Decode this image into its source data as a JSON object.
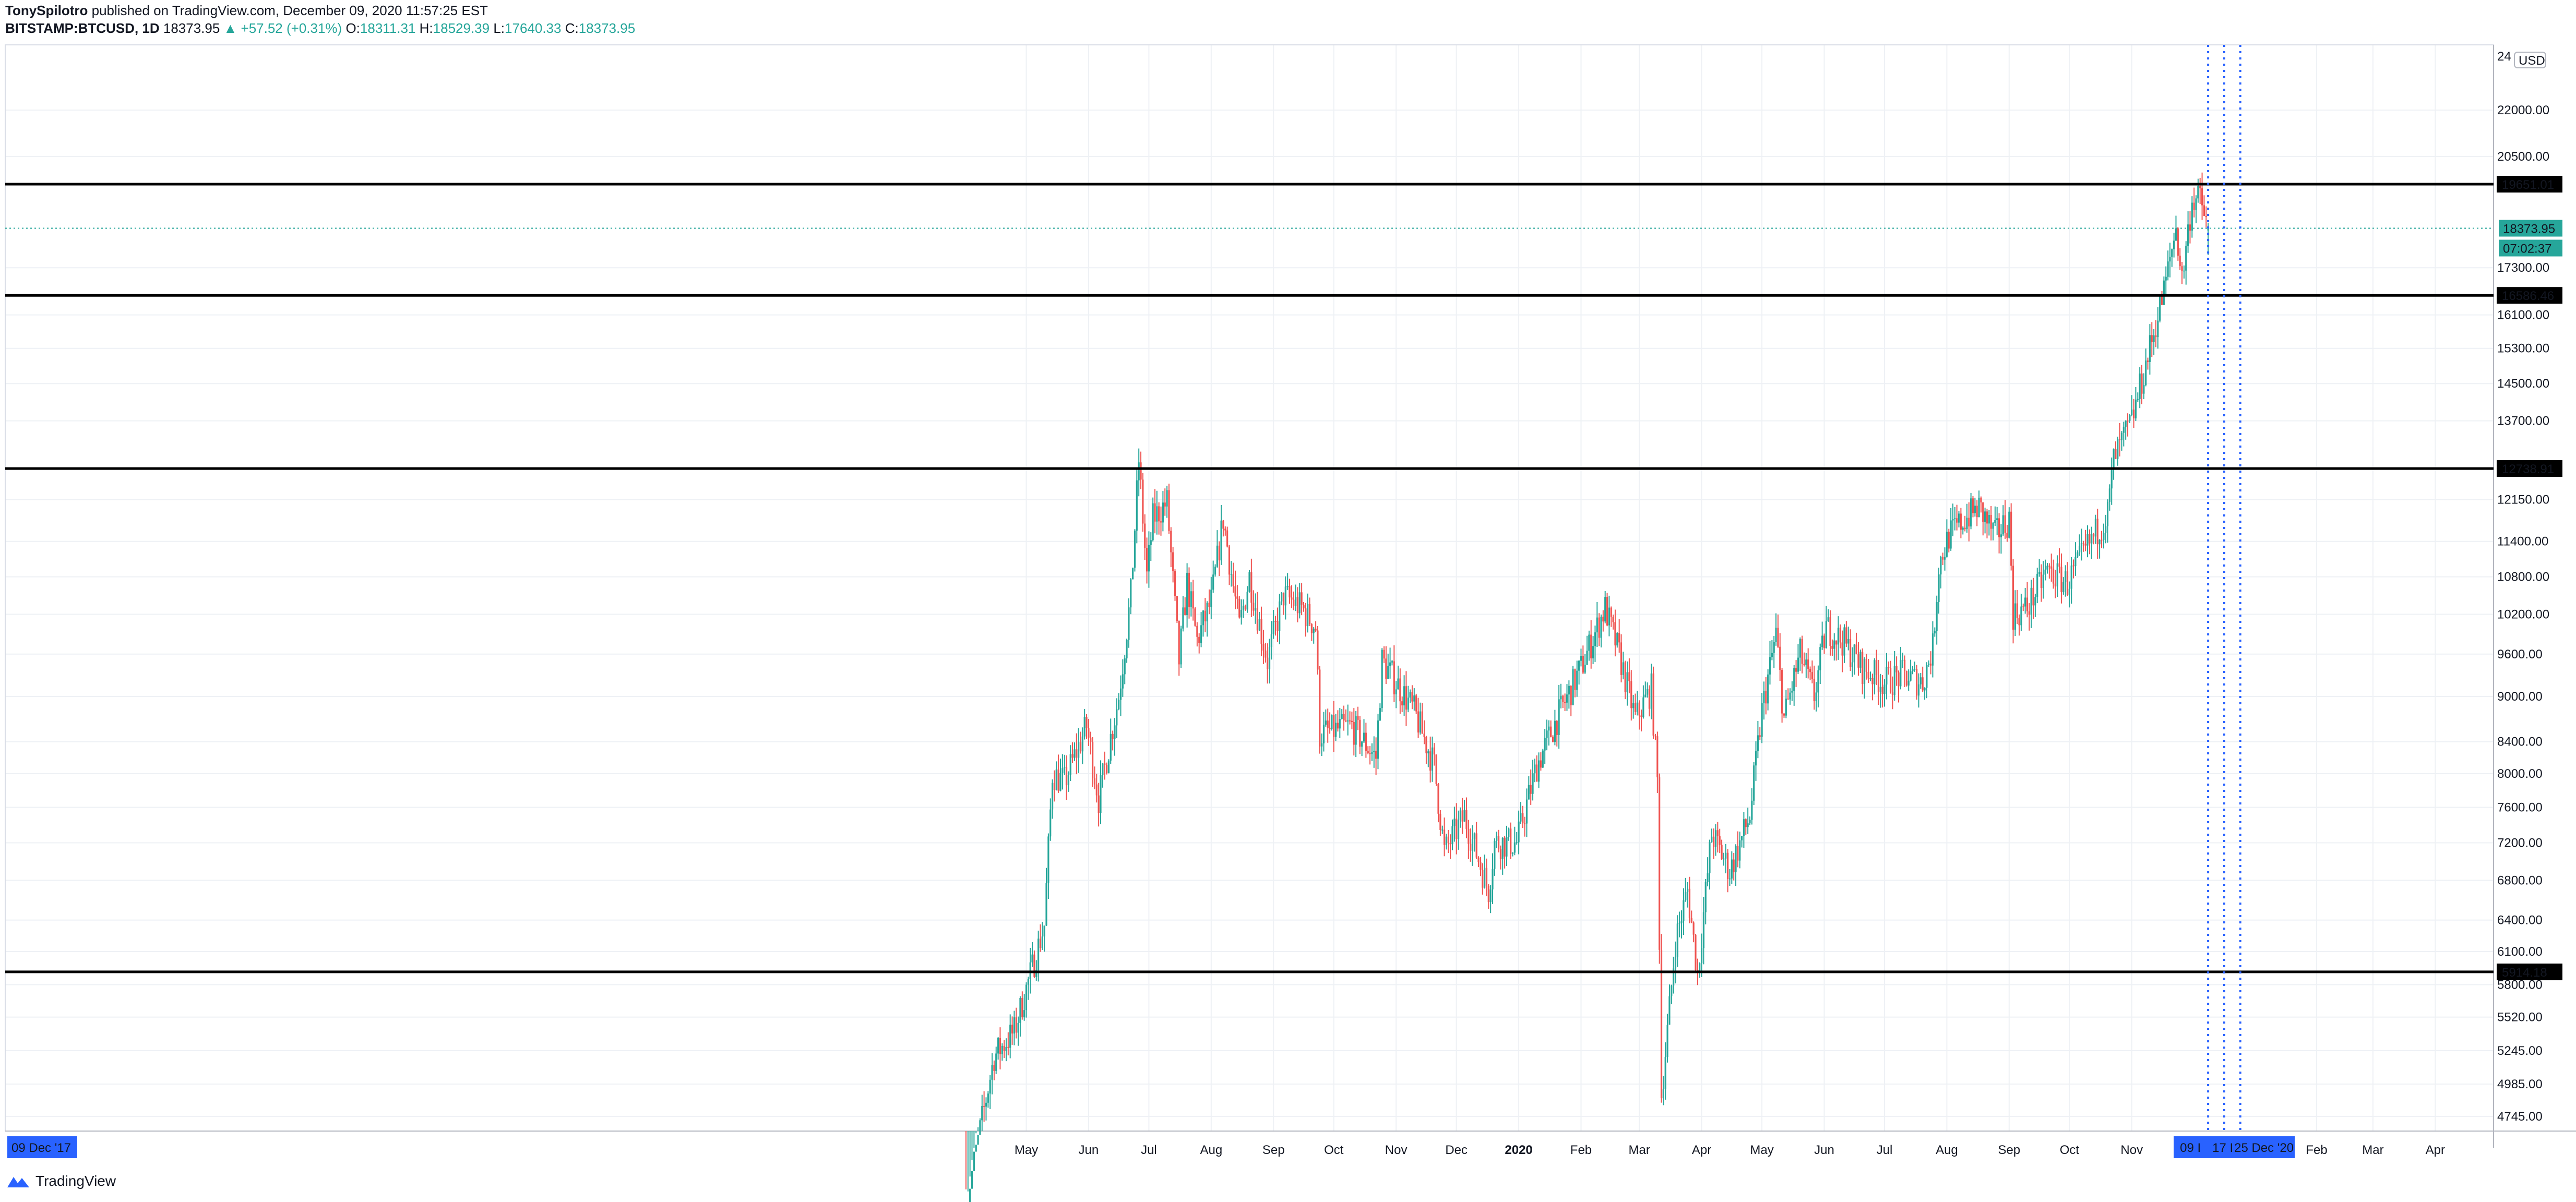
{
  "header": {
    "author": "TonySpilotro",
    "published_text": "published on TradingView.com, December 09, 2020 11:57:25 EST",
    "symbol": "BITSTAMP:BTCUSD, 1D",
    "last": "18373.95",
    "change_arrow": "▲",
    "change": "+57.52 (+0.31%)",
    "o_label": "O:",
    "o_value": "18311.31",
    "h_label": "H:",
    "h_value": "18529.39",
    "l_label": "L:",
    "l_value": "17640.33",
    "c_label": "C:",
    "c_value": "18373.95"
  },
  "currency_badge": "USD",
  "footer": {
    "brand": "TradingView",
    "logo_icon": "tradingview-logo-icon"
  },
  "colors": {
    "up": "#26a69a",
    "down": "#ef5350",
    "marker": "#2962ff",
    "grid": "#eef1f5"
  },
  "chart_data": {
    "type": "candlestick",
    "y_scale": "log",
    "ylim": [
      4640,
      24300
    ],
    "xlim": [
      "2017-12-09",
      "2021-04-30"
    ],
    "x_tick_labels": [
      "May",
      "Jun",
      "Jul",
      "Aug",
      "Sep",
      "Oct",
      "Nov",
      "Dec",
      "2020",
      "Feb",
      "Mar",
      "Apr",
      "May",
      "Jun",
      "Jul",
      "Aug",
      "Sep",
      "Oct",
      "Nov",
      "Feb",
      "Mar",
      "Apr"
    ],
    "x_tick_dates": [
      "2019-05-01",
      "2019-06-01",
      "2019-07-01",
      "2019-08-01",
      "2019-09-01",
      "2019-10-01",
      "2019-11-01",
      "2019-12-01",
      "2020-01-01",
      "2020-02-01",
      "2020-03-01",
      "2020-04-01",
      "2020-05-01",
      "2020-06-01",
      "2020-07-01",
      "2020-08-01",
      "2020-09-01",
      "2020-10-01",
      "2020-11-01",
      "2021-02-01",
      "2021-03-01",
      "2021-04-01"
    ],
    "y_ticks": [
      4745,
      4985,
      5245,
      5520,
      5800,
      6100,
      6400,
      6800,
      7200,
      7600,
      8000,
      8400,
      9000,
      9600,
      10200,
      10800,
      11400,
      12150,
      13700,
      14500,
      15300,
      16100,
      17300,
      20500,
      22000
    ],
    "y_tick_labels": [
      "4745.00",
      "4985.00",
      "5245.00",
      "5520.00",
      "5800.00",
      "6100.00",
      "6400.00",
      "6800.00",
      "7200.00",
      "7600.00",
      "8000.00",
      "8400.00",
      "9000.00",
      "9600.00",
      "10200.00",
      "10800.00",
      "11400.00",
      "12150.00",
      "13700.00",
      "14500.00",
      "15300.00",
      "16100.00",
      "17300.00",
      "20500.00",
      "22000.00"
    ],
    "top_tick_label": "24",
    "horizontal_levels": [
      {
        "value": 19651.01,
        "label": "19651.01"
      },
      {
        "value": 16586.46,
        "label": "16586.46"
      },
      {
        "value": 12738.91,
        "label": "12738.91"
      },
      {
        "value": 5914.18,
        "label": "5914.18"
      }
    ],
    "last_price": {
      "value": 18373.95,
      "label": "18373.95",
      "countdown": "07:02:37"
    },
    "vertical_markers": [
      "2020-12-09",
      "2020-12-17",
      "2020-12-25"
    ],
    "x_badges": {
      "start": "09 Dec '17",
      "end_1": "09 I",
      "end_2": "17 I",
      "end_3": "25 Dec '20"
    },
    "anchors": [
      [
        "2019-04-01",
        4150
      ],
      [
        "2019-04-15",
        5200
      ],
      [
        "2019-04-25",
        5400
      ],
      [
        "2019-05-10",
        6350
      ],
      [
        "2019-05-14",
        8000
      ],
      [
        "2019-05-20",
        7900
      ],
      [
        "2019-05-31",
        8600
      ],
      [
        "2019-06-06",
        7700
      ],
      [
        "2019-06-16",
        9000
      ],
      [
        "2019-06-22",
        10500
      ],
      [
        "2019-06-26",
        12900
      ],
      [
        "2019-06-30",
        10800
      ],
      [
        "2019-07-03",
        11800
      ],
      [
        "2019-07-10",
        12100
      ],
      [
        "2019-07-16",
        9500
      ],
      [
        "2019-07-20",
        10700
      ],
      [
        "2019-07-25",
        9800
      ],
      [
        "2019-08-01",
        10400
      ],
      [
        "2019-08-07",
        11800
      ],
      [
        "2019-08-15",
        10000
      ],
      [
        "2019-08-20",
        10800
      ],
      [
        "2019-08-29",
        9500
      ],
      [
        "2019-09-06",
        10500
      ],
      [
        "2019-09-15",
        10300
      ],
      [
        "2019-09-22",
        10000
      ],
      [
        "2019-09-24",
        8500
      ],
      [
        "2019-10-10",
        8600
      ],
      [
        "2019-10-22",
        8200
      ],
      [
        "2019-10-25",
        9500
      ],
      [
        "2019-11-01",
        9200
      ],
      [
        "2019-11-10",
        8800
      ],
      [
        "2019-11-20",
        8100
      ],
      [
        "2019-11-25",
        7100
      ],
      [
        "2019-12-05",
        7500
      ],
      [
        "2019-12-17",
        6700
      ],
      [
        "2019-12-20",
        7200
      ],
      [
        "2019-12-31",
        7200
      ],
      [
        "2020-01-10",
        8100
      ],
      [
        "2020-01-20",
        8700
      ],
      [
        "2020-02-01",
        9400
      ],
      [
        "2020-02-13",
        10300
      ],
      [
        "2020-02-20",
        9600
      ],
      [
        "2020-02-28",
        8700
      ],
      [
        "2020-03-07",
        9100
      ],
      [
        "2020-03-10",
        7900
      ],
      [
        "2020-03-12",
        4900
      ],
      [
        "2020-03-15",
        5400
      ],
      [
        "2020-03-19",
        6200
      ],
      [
        "2020-03-25",
        6700
      ],
      [
        "2020-03-30",
        5900
      ],
      [
        "2020-04-06",
        7300
      ],
      [
        "2020-04-15",
        6900
      ],
      [
        "2020-04-25",
        7500
      ],
      [
        "2020-05-01",
        8800
      ],
      [
        "2020-05-08",
        9900
      ],
      [
        "2020-05-12",
        8700
      ],
      [
        "2020-05-20",
        9600
      ],
      [
        "2020-05-27",
        9000
      ],
      [
        "2020-06-02",
        10000
      ],
      [
        "2020-06-10",
        9800
      ],
      [
        "2020-06-20",
        9400
      ],
      [
        "2020-07-01",
        9200
      ],
      [
        "2020-07-10",
        9300
      ],
      [
        "2020-07-20",
        9200
      ],
      [
        "2020-07-25",
        9700
      ],
      [
        "2020-07-28",
        11000
      ],
      [
        "2020-08-02",
        11500
      ],
      [
        "2020-08-10",
        11800
      ],
      [
        "2020-08-17",
        12000
      ],
      [
        "2020-08-25",
        11500
      ],
      [
        "2020-09-01",
        11800
      ],
      [
        "2020-09-03",
        10200
      ],
      [
        "2020-09-10",
        10300
      ],
      [
        "2020-09-20",
        10900
      ],
      [
        "2020-09-30",
        10700
      ],
      [
        "2020-10-10",
        11300
      ],
      [
        "2020-10-20",
        11900
      ],
      [
        "2020-10-23",
        12900
      ],
      [
        "2020-11-01",
        13700
      ],
      [
        "2020-11-10",
        15300
      ],
      [
        "2020-11-17",
        16700
      ],
      [
        "2020-11-23",
        18400
      ],
      [
        "2020-11-26",
        17000
      ],
      [
        "2020-12-01",
        19200
      ],
      [
        "2020-12-05",
        19200
      ],
      [
        "2020-12-09",
        18373.95
      ]
    ]
  }
}
